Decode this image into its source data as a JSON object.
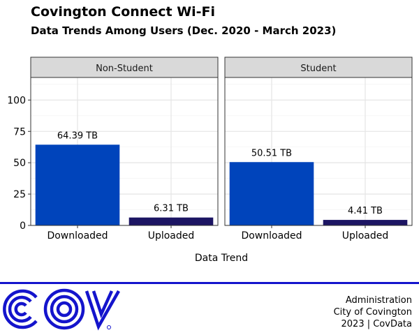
{
  "header": {
    "title": "Covington Connect Wi-Fi",
    "subtitle": "Data Trends Among Users (Dec. 2020 - March 2023)"
  },
  "chart_data": {
    "type": "bar",
    "title": "Covington Connect Wi-Fi",
    "subtitle": "Data Trends Among Users (Dec. 2020 - March 2023)",
    "xlabel": "Data Trend",
    "ylabel": "",
    "ylim": [
      0,
      118
    ],
    "yticks": [
      0,
      25,
      50,
      75,
      100
    ],
    "grid": true,
    "legend": "none",
    "categories": [
      "Downloaded",
      "Uploaded"
    ],
    "bar_colors": [
      "#0044bb",
      "#1c1563"
    ],
    "panels": [
      {
        "name": "Non-Student",
        "values": [
          64.39,
          6.31
        ],
        "labels": [
          "64.39 TB",
          "6.31 TB"
        ]
      },
      {
        "name": "Student",
        "values": [
          50.51,
          4.41
        ],
        "labels": [
          "50.51 TB",
          "4.41 TB"
        ]
      }
    ]
  },
  "footer": {
    "logo_text": "COV",
    "logo_color": "#1414cc",
    "credits": [
      "Administration",
      "City of Covington",
      "2023 | CovData"
    ]
  }
}
